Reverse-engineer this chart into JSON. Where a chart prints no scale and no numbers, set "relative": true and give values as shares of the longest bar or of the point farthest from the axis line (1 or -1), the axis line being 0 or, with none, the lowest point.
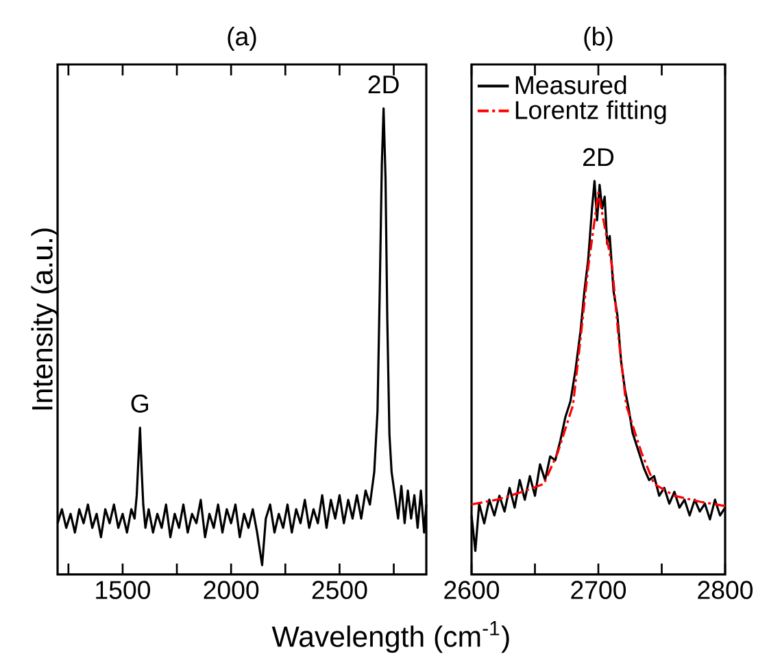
{
  "chart_data": [
    {
      "type": "line",
      "title": "(a)",
      "ylabel": "Intensity (a.u.)",
      "xlabel": "Wavelength (cm$^{-1}$)",
      "relative": true,
      "tick_labels": "x",
      "xlim": [
        1200,
        2900
      ],
      "xticks": [
        {
          "value": 1250,
          "label": null
        },
        1500,
        {
          "value": 1750,
          "label": null
        },
        2000,
        {
          "value": 2250,
          "label": null
        },
        2500,
        {
          "value": 2750,
          "label": null
        }
      ],
      "annotations": [
        {
          "text": "G",
          "x": 1580,
          "y": 0.315
        },
        {
          "text": "2D",
          "x": 2703,
          "y": 1.0
        }
      ],
      "series": [
        {
          "color": "#000000",
          "x": [
            1200,
            1220,
            1240,
            1260,
            1280,
            1300,
            1320,
            1340,
            1360,
            1380,
            1400,
            1420,
            1440,
            1460,
            1480,
            1500,
            1520,
            1540,
            1555,
            1565,
            1572,
            1580,
            1588,
            1595,
            1605,
            1620,
            1640,
            1660,
            1680,
            1700,
            1720,
            1740,
            1760,
            1780,
            1800,
            1820,
            1840,
            1860,
            1880,
            1900,
            1920,
            1940,
            1960,
            1980,
            2000,
            2020,
            2040,
            2060,
            2080,
            2100,
            2120,
            2143,
            2160,
            2180,
            2200,
            2220,
            2240,
            2260,
            2280,
            2300,
            2320,
            2340,
            2360,
            2380,
            2400,
            2420,
            2440,
            2460,
            2480,
            2500,
            2520,
            2540,
            2560,
            2580,
            2600,
            2620,
            2640,
            2660,
            2675,
            2685,
            2695,
            2703,
            2712,
            2720,
            2730,
            2740,
            2755,
            2770,
            2785,
            2800,
            2815,
            2830,
            2845,
            2860,
            2875,
            2890,
            2900
          ],
          "values": [
            0.11,
            0.14,
            0.1,
            0.13,
            0.09,
            0.14,
            0.11,
            0.15,
            0.1,
            0.13,
            0.08,
            0.14,
            0.11,
            0.15,
            0.1,
            0.13,
            0.09,
            0.14,
            0.12,
            0.17,
            0.24,
            0.315,
            0.22,
            0.15,
            0.1,
            0.14,
            0.09,
            0.13,
            0.1,
            0.15,
            0.08,
            0.13,
            0.1,
            0.15,
            0.09,
            0.13,
            0.11,
            0.16,
            0.08,
            0.13,
            0.1,
            0.15,
            0.09,
            0.14,
            0.11,
            0.15,
            0.08,
            0.13,
            0.1,
            0.14,
            0.09,
            0.02,
            0.12,
            0.15,
            0.09,
            0.13,
            0.1,
            0.15,
            0.09,
            0.14,
            0.11,
            0.16,
            0.1,
            0.14,
            0.11,
            0.17,
            0.1,
            0.16,
            0.12,
            0.17,
            0.11,
            0.16,
            0.12,
            0.17,
            0.12,
            0.18,
            0.15,
            0.22,
            0.35,
            0.6,
            0.88,
            1.0,
            0.85,
            0.55,
            0.3,
            0.22,
            0.17,
            0.12,
            0.19,
            0.11,
            0.18,
            0.12,
            0.17,
            0.1,
            0.18,
            0.09,
            0.15
          ]
        }
      ]
    },
    {
      "type": "line",
      "title": "(b)",
      "relative": true,
      "tick_labels": "x",
      "xlim": [
        2600,
        2800
      ],
      "xticks": [
        2600,
        {
          "value": 2650,
          "label": null
        },
        2700,
        {
          "value": 2750,
          "label": null
        },
        2800
      ],
      "legend": "top",
      "annotations": [
        {
          "text": "2D",
          "x": 2700,
          "y": 1.0
        }
      ],
      "series": [
        {
          "name": "Measured",
          "color": "#000000",
          "line_style": "solid",
          "x": [
            2600,
            2603,
            2606,
            2610,
            2614,
            2618,
            2622,
            2626,
            2630,
            2634,
            2638,
            2642,
            2646,
            2650,
            2654,
            2658,
            2662,
            2666,
            2670,
            2674,
            2678,
            2682,
            2686,
            2689,
            2692,
            2695,
            2697,
            2699,
            2701,
            2703,
            2705,
            2707,
            2709,
            2712,
            2715,
            2718,
            2721,
            2724,
            2727,
            2730,
            2733,
            2736,
            2740,
            2744,
            2748,
            2752,
            2756,
            2760,
            2764,
            2768,
            2772,
            2776,
            2780,
            2784,
            2788,
            2792,
            2796,
            2800
          ],
          "values": [
            0.15,
            0.06,
            0.18,
            0.13,
            0.19,
            0.15,
            0.2,
            0.16,
            0.22,
            0.17,
            0.24,
            0.19,
            0.25,
            0.2,
            0.28,
            0.24,
            0.3,
            0.29,
            0.34,
            0.4,
            0.44,
            0.52,
            0.62,
            0.72,
            0.8,
            0.93,
            1.0,
            0.9,
            0.99,
            0.93,
            0.96,
            0.84,
            0.86,
            0.72,
            0.66,
            0.54,
            0.47,
            0.42,
            0.36,
            0.33,
            0.3,
            0.27,
            0.24,
            0.25,
            0.2,
            0.22,
            0.18,
            0.21,
            0.17,
            0.19,
            0.15,
            0.19,
            0.16,
            0.18,
            0.14,
            0.19,
            0.15,
            0.17
          ]
        },
        {
          "name": "Lorentz fitting",
          "color": "#ff0000",
          "line_style": "dashdot",
          "x": [
            2600,
            2620,
            2640,
            2657,
            2668,
            2680,
            2686,
            2692,
            2700,
            2711,
            2716,
            2722,
            2734,
            2744,
            2760,
            2780,
            2800
          ],
          "values": [
            0.178,
            0.19,
            0.21,
            0.23,
            0.31,
            0.43,
            0.6,
            0.78,
            0.97,
            0.78,
            0.6,
            0.43,
            0.31,
            0.23,
            0.2,
            0.185,
            0.174
          ]
        }
      ]
    }
  ]
}
